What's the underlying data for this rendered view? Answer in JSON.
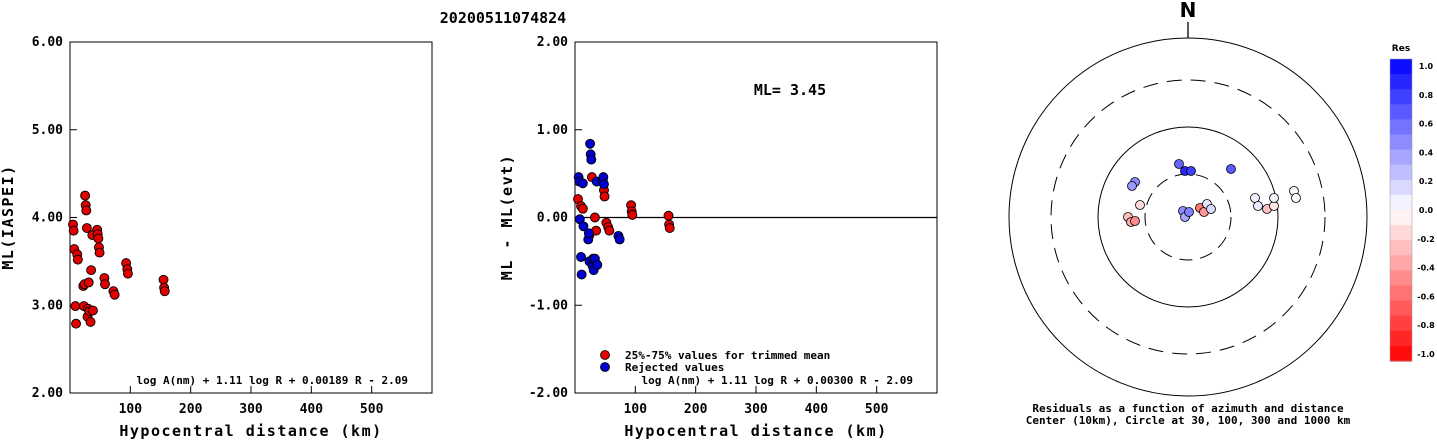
{
  "title": "20200511074824",
  "chart_data": [
    {
      "type": "scatter",
      "xlabel": "Hypocentral distance (km)",
      "ylabel": "ML(IASPEI)",
      "xlim": [
        0,
        600
      ],
      "ylim": [
        2.0,
        6.0
      ],
      "x_ticks": [
        "100",
        "200",
        "300",
        "400",
        "500"
      ],
      "y_ticks": [
        "2.00",
        "3.00",
        "4.00",
        "5.00",
        "6.00"
      ],
      "formula": "log A(nm) + 1.11 log R + 0.00189 R - 2.09",
      "series": [
        {
          "color": "#e00000",
          "points": [
            [
              5,
              3.92
            ],
            [
              6,
              3.85
            ],
            [
              7,
              3.64
            ],
            [
              9,
              2.99
            ],
            [
              10,
              2.79
            ],
            [
              12,
              3.58
            ],
            [
              13,
              3.52
            ],
            [
              22,
              3.22
            ],
            [
              23,
              2.99
            ],
            [
              24,
              3.24
            ],
            [
              25,
              4.25
            ],
            [
              26,
              4.14
            ],
            [
              27,
              4.08
            ],
            [
              28,
              3.88
            ],
            [
              29,
              2.87
            ],
            [
              30,
              2.96
            ],
            [
              31,
              3.26
            ],
            [
              32,
              2.93
            ],
            [
              34,
              2.81
            ],
            [
              35,
              3.4
            ],
            [
              37,
              3.8
            ],
            [
              38,
              2.94
            ],
            [
              45,
              3.86
            ],
            [
              46,
              3.81
            ],
            [
              47,
              3.76
            ],
            [
              48,
              3.66
            ],
            [
              49,
              3.6
            ],
            [
              57,
              3.31
            ],
            [
              58,
              3.24
            ],
            [
              72,
              3.16
            ],
            [
              74,
              3.12
            ],
            [
              93,
              3.48
            ],
            [
              95,
              3.41
            ],
            [
              96,
              3.36
            ],
            [
              155,
              3.29
            ],
            [
              156,
              3.2
            ],
            [
              157,
              3.16
            ]
          ]
        }
      ]
    },
    {
      "type": "scatter",
      "xlabel": "Hypocentral distance (km)",
      "ylabel": "ML - ML(evt)",
      "xlim": [
        0,
        600
      ],
      "ylim": [
        -2.0,
        2.0
      ],
      "x_ticks": [
        "100",
        "200",
        "300",
        "400",
        "500"
      ],
      "y_ticks": [
        "-2.00",
        "-1.00",
        "0.00",
        "1.00",
        "2.00"
      ],
      "reference_line": 0,
      "annotation": "ML= 3.45",
      "formula": "log A(nm) + 1.11 log R + 0.00300 R - 2.09",
      "series": [
        {
          "name": "25%-75% values for trimmed mean",
          "color": "#e00000",
          "points": [
            [
              5,
              0.21
            ],
            [
              10,
              0.13
            ],
            [
              13,
              0.1
            ],
            [
              24,
              -0.2
            ],
            [
              28,
              0.46
            ],
            [
              33,
              0.0
            ],
            [
              35,
              -0.15
            ],
            [
              48,
              0.31
            ],
            [
              49,
              0.24
            ],
            [
              52,
              -0.06
            ],
            [
              55,
              -0.11
            ],
            [
              57,
              -0.15
            ],
            [
              93,
              0.14
            ],
            [
              94,
              0.07
            ],
            [
              95,
              0.03
            ],
            [
              155,
              0.02
            ],
            [
              156,
              -0.08
            ],
            [
              157,
              -0.12
            ]
          ]
        },
        {
          "name": "Rejected values",
          "color": "#0000d0",
          "points": [
            [
              6,
              0.46
            ],
            [
              7,
              0.41
            ],
            [
              8,
              -0.02
            ],
            [
              10,
              -0.45
            ],
            [
              11,
              -0.65
            ],
            [
              13,
              0.39
            ],
            [
              14,
              -0.1
            ],
            [
              22,
              -0.25
            ],
            [
              23,
              -0.18
            ],
            [
              24,
              -0.5
            ],
            [
              25,
              0.84
            ],
            [
              26,
              0.72
            ],
            [
              27,
              0.66
            ],
            [
              29,
              -0.55
            ],
            [
              30,
              -0.47
            ],
            [
              31,
              -0.6
            ],
            [
              33,
              -0.47
            ],
            [
              36,
              0.41
            ],
            [
              37,
              -0.54
            ],
            [
              46,
              0.43
            ],
            [
              47,
              0.46
            ],
            [
              48,
              0.38
            ],
            [
              72,
              -0.21
            ],
            [
              74,
              -0.25
            ]
          ]
        }
      ]
    },
    {
      "type": "polar-scatter",
      "north_label": "N",
      "caption_line1": "Residuals as a function of azimuth and distance",
      "caption_line2": "Center (10km), Circle at 30, 100, 300 and 1000 km",
      "colorbar_title": "Res",
      "colorbar_labels": [
        "1.0",
        "0.8",
        "0.6",
        "0.4",
        "0.2",
        "0.0",
        "-0.2",
        "-0.4",
        "-0.6",
        "-0.8",
        "-1.0"
      ],
      "points": [
        {
          "dx": -53,
          "dy": -35,
          "res": 0.45
        },
        {
          "dx": -56,
          "dy": -31,
          "res": 0.4
        },
        {
          "dx": -60,
          "dy": 0,
          "res": -0.25
        },
        {
          "dx": -57,
          "dy": 5,
          "res": -0.35
        },
        {
          "dx": -53,
          "dy": 4,
          "res": -0.45
        },
        {
          "dx": -48,
          "dy": -12,
          "res": -0.15
        },
        {
          "dx": -9,
          "dy": -53,
          "res": 0.6
        },
        {
          "dx": -3,
          "dy": -46,
          "res": 0.85
        },
        {
          "dx": 3,
          "dy": -46,
          "res": 0.75
        },
        {
          "dx": -5,
          "dy": -6,
          "res": 0.45
        },
        {
          "dx": -3,
          "dy": 0,
          "res": 0.35
        },
        {
          "dx": 1,
          "dy": -5,
          "res": 0.5
        },
        {
          "dx": 12,
          "dy": -9,
          "res": -0.55
        },
        {
          "dx": 16,
          "dy": -5,
          "res": -0.4
        },
        {
          "dx": 19,
          "dy": -13,
          "res": 0.1
        },
        {
          "dx": 23,
          "dy": -8,
          "res": 0.15
        },
        {
          "dx": 43,
          "dy": -48,
          "res": 0.65
        },
        {
          "dx": 67,
          "dy": -19,
          "res": 0.05
        },
        {
          "dx": 70,
          "dy": -11,
          "res": 0.08
        },
        {
          "dx": 79,
          "dy": -8,
          "res": -0.25
        },
        {
          "dx": 86,
          "dy": -11,
          "res": -0.1
        },
        {
          "dx": 86,
          "dy": -19,
          "res": 0.05
        },
        {
          "dx": 106,
          "dy": -26,
          "res": 0.03
        },
        {
          "dx": 108,
          "dy": -19,
          "res": 0.02
        }
      ]
    }
  ]
}
